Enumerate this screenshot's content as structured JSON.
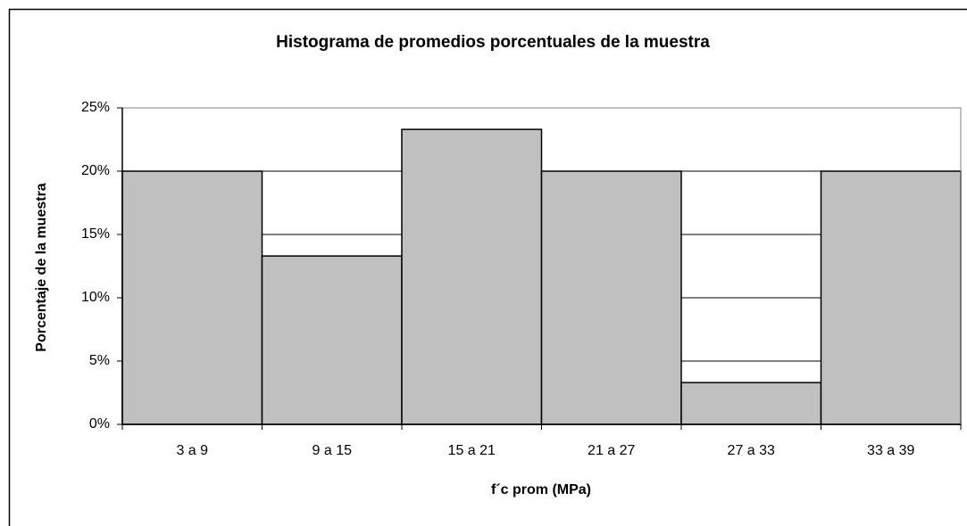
{
  "chart_data": {
    "type": "bar",
    "title": "Histograma de promedios porcentuales de la muestra",
    "x_label": "f´c prom (MPa)",
    "y_label": "Porcentaje de la muestra",
    "categories": [
      "3 a 9",
      "9 a 15",
      "15 a 21",
      "21 a 27",
      "27 a 33",
      "33 a 39"
    ],
    "values": [
      20,
      13.3,
      23.3,
      20,
      3.3,
      20
    ],
    "color": "#c0c0c0",
    "ylim": [
      0,
      25
    ],
    "yticks": [
      {
        "value": 0,
        "label": "0%"
      },
      {
        "value": 5,
        "label": "5%"
      },
      {
        "value": 10,
        "label": "10%"
      },
      {
        "value": 15,
        "label": "15%"
      },
      {
        "value": 20,
        "label": "20%"
      },
      {
        "value": 25,
        "label": "25%"
      }
    ],
    "grid": true
  }
}
